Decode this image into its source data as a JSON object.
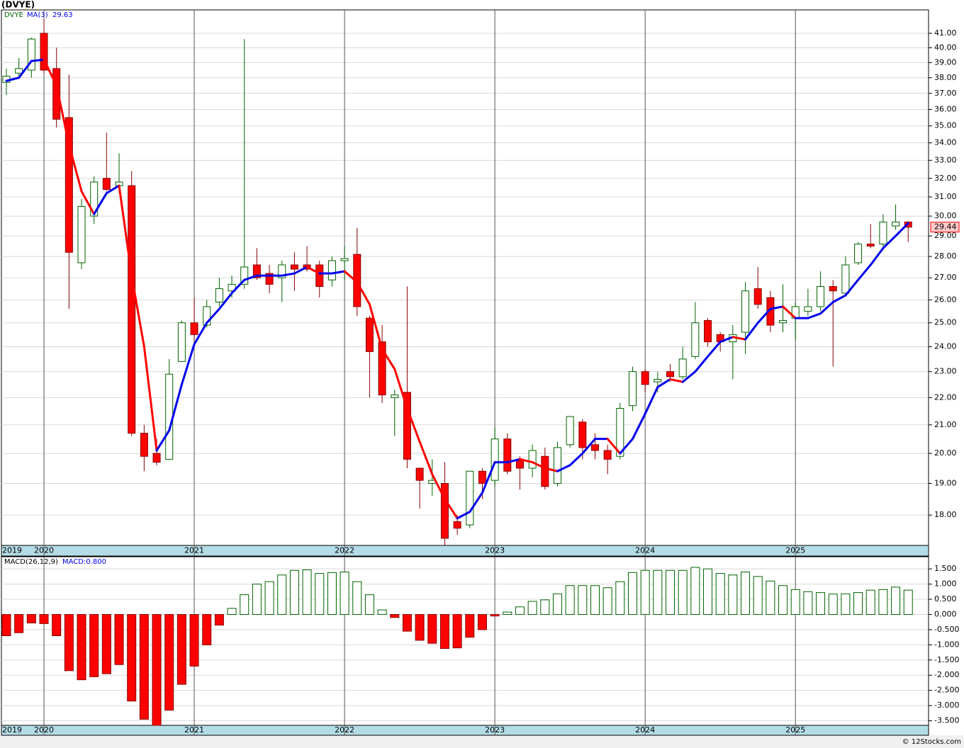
{
  "chart_data": [
    {
      "type": "candlestick",
      "title": "(DVYE)",
      "symbol": "DVYE",
      "log": true,
      "grid": true,
      "up_color": "#ffffff",
      "up_edge": "#006400",
      "down_color": "#ff0000",
      "down_edge": "#8b0000",
      "categories": [
        "2019",
        null,
        null,
        "2020",
        null,
        null,
        null,
        null,
        null,
        null,
        null,
        null,
        null,
        null,
        null,
        "2021",
        null,
        null,
        null,
        null,
        null,
        null,
        null,
        null,
        null,
        null,
        null,
        "2022",
        null,
        null,
        null,
        null,
        null,
        null,
        null,
        null,
        null,
        null,
        null,
        "2023",
        null,
        null,
        null,
        null,
        null,
        null,
        null,
        null,
        null,
        null,
        null,
        "2024",
        null,
        null,
        null,
        null,
        null,
        null,
        null,
        null,
        null,
        null,
        null,
        "2025",
        null,
        null,
        null,
        null,
        null,
        null,
        null,
        null,
        null
      ],
      "open": [
        37.7,
        38.3,
        38.5,
        41.0,
        38.6,
        35.5,
        27.7,
        30.0,
        32.0,
        31.6,
        31.6,
        20.7,
        20.0,
        19.8,
        23.4,
        25.0,
        24.9,
        25.9,
        26.4,
        26.7,
        27.6,
        27.2,
        27.0,
        27.6,
        27.6,
        27.6,
        26.9,
        27.8,
        28.1,
        25.2,
        24.2,
        22.0,
        22.2,
        19.5,
        19.0,
        19.0,
        17.8,
        17.7,
        19.4,
        19.1,
        20.5,
        19.8,
        19.5,
        19.9,
        19.0,
        20.3,
        21.1,
        20.3,
        20.1,
        19.9,
        21.7,
        23.0,
        22.6,
        23.0,
        22.8,
        23.6,
        25.1,
        24.5,
        24.2,
        24.6,
        26.5,
        26.1,
        25.0,
        25.2,
        25.5,
        25.7,
        26.6,
        26.3,
        27.7,
        28.6,
        28.6,
        29.5,
        29.7
      ],
      "high": [
        38.6,
        39.3,
        40.7,
        42.0,
        40.0,
        38.2,
        30.9,
        32.1,
        34.6,
        33.4,
        32.4,
        21.0,
        20.5,
        23.5,
        25.1,
        26.1,
        26.0,
        27.0,
        27.1,
        40.6,
        28.4,
        27.6,
        27.8,
        28.2,
        28.5,
        27.8,
        28.0,
        28.5,
        29.4,
        25.3,
        24.9,
        22.3,
        26.6,
        19.5,
        19.8,
        19.7,
        18.0,
        19.4,
        19.5,
        20.9,
        20.7,
        19.9,
        20.3,
        20.2,
        20.4,
        21.3,
        21.2,
        20.7,
        20.3,
        21.8,
        23.2,
        23.1,
        23.0,
        23.3,
        24.0,
        25.9,
        25.2,
        24.6,
        24.9,
        26.8,
        27.5,
        26.4,
        26.7,
        25.9,
        26.5,
        27.3,
        26.9,
        28.0,
        28.7,
        29.6,
        30.1,
        30.6,
        29.7
      ],
      "low": [
        36.9,
        38.1,
        38.0,
        38.3,
        34.9,
        25.6,
        27.4,
        29.6,
        31.3,
        31.2,
        20.6,
        19.4,
        19.6,
        19.8,
        23.4,
        24.0,
        24.8,
        25.7,
        26.1,
        26.5,
        26.9,
        26.3,
        25.9,
        26.4,
        27.3,
        26.1,
        26.6,
        26.9,
        25.3,
        22.0,
        21.8,
        20.6,
        19.5,
        18.2,
        18.6,
        17.1,
        17.4,
        17.6,
        18.5,
        18.9,
        19.3,
        18.8,
        19.2,
        18.8,
        18.9,
        20.2,
        19.8,
        19.8,
        19.3,
        19.8,
        21.5,
        22.2,
        22.2,
        22.6,
        22.7,
        23.5,
        24.0,
        23.8,
        22.7,
        23.7,
        25.6,
        24.6,
        24.6,
        24.3,
        25.3,
        25.5,
        23.2,
        26.2,
        27.6,
        28.4,
        28.4,
        29.3,
        28.7
      ],
      "close": [
        38.1,
        38.6,
        40.6,
        38.5,
        35.4,
        28.2,
        30.5,
        31.8,
        31.4,
        31.8,
        20.7,
        19.9,
        19.7,
        22.9,
        25.0,
        24.5,
        25.7,
        26.5,
        26.7,
        27.5,
        27.0,
        26.7,
        27.6,
        27.4,
        27.4,
        26.6,
        27.8,
        27.9,
        25.7,
        23.8,
        22.1,
        22.1,
        19.8,
        19.1,
        19.1,
        17.3,
        17.6,
        19.4,
        19.0,
        20.5,
        19.4,
        19.5,
        20.1,
        18.9,
        20.2,
        21.3,
        20.2,
        20.1,
        19.8,
        21.6,
        23.0,
        22.5,
        22.7,
        22.8,
        23.5,
        25.0,
        24.2,
        24.2,
        24.5,
        26.4,
        25.8,
        24.9,
        25.1,
        25.7,
        25.7,
        26.6,
        26.4,
        27.6,
        28.6,
        28.5,
        29.7,
        29.7,
        29.44
      ],
      "ma": {
        "name": "MA(3)",
        "up_color": "#0000ee",
        "down_color": "#ff0000",
        "values": [
          37.8,
          38.0,
          39.1,
          39.2,
          37.5,
          33.9,
          31.3,
          30.1,
          31.2,
          31.6,
          27.1,
          24.0,
          20.1,
          20.8,
          22.5,
          24.1,
          25.0,
          25.6,
          26.3,
          26.9,
          27.1,
          27.1,
          27.1,
          27.2,
          27.5,
          27.2,
          27.2,
          27.3,
          26.8,
          25.8,
          23.9,
          23.1,
          21.6,
          20.4,
          19.3,
          18.5,
          17.9,
          18.1,
          18.7,
          19.7,
          19.7,
          19.8,
          19.7,
          19.5,
          19.4,
          19.6,
          20.0,
          20.5,
          20.5,
          20.0,
          20.5,
          21.4,
          22.4,
          22.7,
          22.6,
          23.0,
          23.6,
          24.2,
          24.4,
          24.3,
          25.0,
          25.6,
          25.7,
          25.2,
          25.2,
          25.4,
          25.9,
          26.2,
          26.9,
          27.6,
          28.4,
          29.0,
          29.63
        ]
      },
      "ylim": [
        17.09,
        42.67
      ],
      "yticks": [
        {
          "value": 18,
          "label": "18.00"
        },
        {
          "value": 19,
          "label": "19.00"
        },
        {
          "value": 20,
          "label": "20.00"
        },
        {
          "value": 21,
          "label": "21.00"
        },
        {
          "value": 22,
          "label": "22.00"
        },
        {
          "value": 23,
          "label": "23.00"
        },
        {
          "value": 24,
          "label": "24.00"
        },
        {
          "value": 25,
          "label": "25.00"
        },
        {
          "value": 26,
          "label": "26.00"
        },
        {
          "value": 27,
          "label": "27.00"
        },
        {
          "value": 28,
          "label": "28.00"
        },
        {
          "value": 29,
          "label": "29.00"
        },
        {
          "value": 30,
          "label": "30.00"
        },
        {
          "value": 31,
          "label": "31.00"
        },
        {
          "value": 32,
          "label": "32.00"
        },
        {
          "value": 33,
          "label": "33.00"
        },
        {
          "value": 34,
          "label": "34.00"
        },
        {
          "value": 35,
          "label": "35.00"
        },
        {
          "value": 36,
          "label": "36.00"
        },
        {
          "value": 37,
          "label": "37.00"
        },
        {
          "value": 38,
          "label": "38.00"
        },
        {
          "value": 39,
          "label": "39.00"
        },
        {
          "value": 40,
          "label": "40.00"
        },
        {
          "value": 41,
          "label": "41.00"
        }
      ]
    },
    {
      "type": "bar",
      "title": "MACD(26,12,9)",
      "value_title": "MACD:0.800",
      "grid": true,
      "pos_color": "#ffffff",
      "pos_edge": "#006400",
      "neg_color": "#ff0000",
      "neg_edge": "#8b0000",
      "categories": [
        "2019",
        null,
        null,
        "2020",
        null,
        null,
        null,
        null,
        null,
        null,
        null,
        null,
        null,
        null,
        null,
        "2021",
        null,
        null,
        null,
        null,
        null,
        null,
        null,
        null,
        null,
        null,
        null,
        "2022",
        null,
        null,
        null,
        null,
        null,
        null,
        null,
        null,
        null,
        null,
        null,
        "2023",
        null,
        null,
        null,
        null,
        null,
        null,
        null,
        null,
        null,
        null,
        null,
        "2024",
        null,
        null,
        null,
        null,
        null,
        null,
        null,
        null,
        null,
        null,
        null,
        "2025",
        null,
        null,
        null,
        null,
        null,
        null,
        null,
        null,
        null
      ],
      "values": [
        -0.7,
        -0.6,
        -0.28,
        -0.3,
        -0.7,
        -1.85,
        -2.15,
        -2.05,
        -1.95,
        -1.65,
        -2.85,
        -3.45,
        -3.65,
        -3.15,
        -2.3,
        -1.7,
        -1.0,
        -0.35,
        0.2,
        0.65,
        1.0,
        1.08,
        1.3,
        1.45,
        1.47,
        1.35,
        1.38,
        1.4,
        1.08,
        0.65,
        0.15,
        -0.1,
        -0.55,
        -0.85,
        -0.95,
        -1.12,
        -1.1,
        -0.75,
        -0.5,
        -0.05,
        0.08,
        0.25,
        0.43,
        0.48,
        0.68,
        0.95,
        0.95,
        0.95,
        0.88,
        1.08,
        1.38,
        1.45,
        1.45,
        1.45,
        1.45,
        1.55,
        1.5,
        1.35,
        1.3,
        1.4,
        1.25,
        1.1,
        0.95,
        0.82,
        0.75,
        0.72,
        0.67,
        0.68,
        0.72,
        0.8,
        0.82,
        0.9,
        0.8
      ],
      "ylim": [
        -3.65,
        1.9
      ],
      "yticks": [
        {
          "value": 1.5,
          "label": "1.500"
        },
        {
          "value": 1,
          "label": "1.000"
        },
        {
          "value": 0.5,
          "label": "0.500"
        },
        {
          "value": 0,
          "label": "0.000"
        },
        {
          "value": -0.5,
          "label": "-0.500"
        },
        {
          "value": -1,
          "label": "-1.000"
        },
        {
          "value": -1.5,
          "label": "-1.500"
        },
        {
          "value": -2,
          "label": "-2.000"
        },
        {
          "value": -2.5,
          "label": "-2.500"
        },
        {
          "value": -3,
          "label": "-3.000"
        },
        {
          "value": -3.5,
          "label": "-3.500"
        }
      ]
    }
  ],
  "footer": "© 12Stocks.com"
}
